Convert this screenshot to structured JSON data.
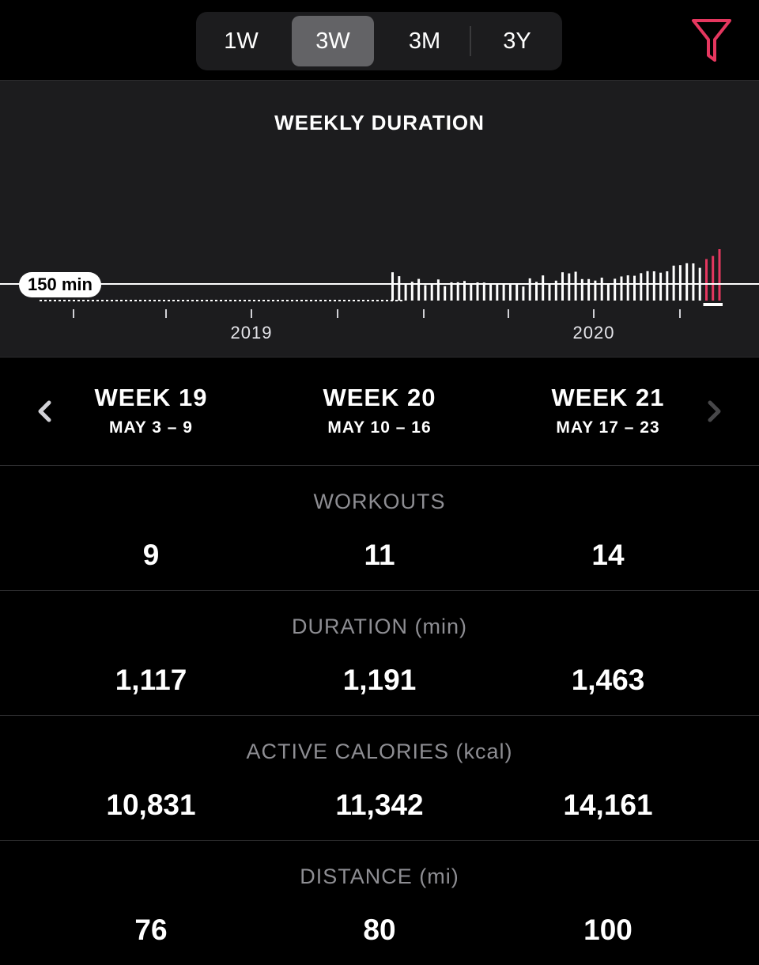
{
  "range_selector": {
    "options": [
      "1W",
      "3W",
      "3M",
      "3Y"
    ],
    "selected": "3W"
  },
  "filter": {
    "icon": "filter-icon",
    "color": "#e5375f"
  },
  "chart": {
    "title": "WEEKLY DURATION",
    "reference_label": "150 min",
    "year_labels": [
      "2019",
      "2020"
    ]
  },
  "chart_data": {
    "type": "bar",
    "title": "WEEKLY DURATION",
    "unit": "min",
    "reference_line": 150,
    "x_tick_labels": [
      "2019",
      "2020"
    ],
    "grid": false,
    "values": [
      0,
      0,
      0,
      0,
      0,
      0,
      0,
      0,
      0,
      0,
      0,
      0,
      0,
      0,
      0,
      0,
      0,
      0,
      0,
      0,
      0,
      0,
      0,
      0,
      0,
      0,
      0,
      0,
      0,
      0,
      0,
      0,
      0,
      0,
      0,
      0,
      0,
      0,
      0,
      0,
      0,
      0,
      0,
      0,
      0,
      0,
      0,
      0,
      0,
      0,
      0,
      0,
      0,
      0,
      256,
      221,
      143,
      170,
      196,
      139,
      155,
      191,
      130,
      165,
      166,
      177,
      150,
      164,
      163,
      156,
      153,
      146,
      155,
      157,
      127,
      201,
      169,
      227,
      157,
      180,
      256,
      246,
      261,
      194,
      194,
      181,
      207,
      157,
      197,
      218,
      228,
      224,
      248,
      266,
      264,
      252,
      264,
      316,
      320,
      337,
      336,
      296,
      375,
      403,
      464
    ],
    "highlight_last_n": 3,
    "highlight_color": "#e5375f",
    "bar_color": "#ffffff"
  },
  "weeks": [
    {
      "title": "WEEK 19",
      "range": "MAY 3 – 9"
    },
    {
      "title": "WEEK 20",
      "range": "MAY 10 – 16"
    },
    {
      "title": "WEEK 21",
      "range": "MAY 17 – 23"
    }
  ],
  "metrics": [
    {
      "label": "WORKOUTS",
      "values": [
        "9",
        "11",
        "14"
      ]
    },
    {
      "label": "DURATION (min)",
      "values": [
        "1,117",
        "1,191",
        "1,463"
      ]
    },
    {
      "label": "ACTIVE CALORIES (kcal)",
      "values": [
        "10,831",
        "11,342",
        "14,161"
      ]
    },
    {
      "label": "DISTANCE (mi)",
      "values": [
        "76",
        "80",
        "100"
      ]
    }
  ]
}
